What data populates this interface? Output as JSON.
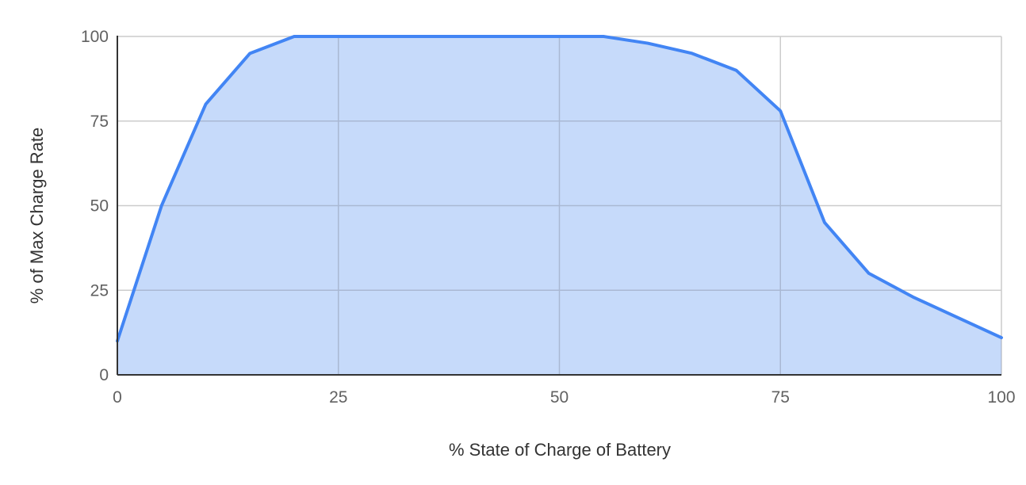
{
  "chart_data": {
    "type": "area",
    "title": "",
    "xlabel": "% State of Charge of Battery",
    "ylabel": "% of Max Charge Rate",
    "xlim": [
      0,
      100
    ],
    "ylim": [
      0,
      100
    ],
    "x_ticks": [
      "0",
      "25",
      "50",
      "75",
      "100"
    ],
    "y_ticks": [
      "0",
      "25",
      "50",
      "75",
      "100"
    ],
    "grid": true,
    "legend": "none",
    "x": [
      0,
      5,
      10,
      15,
      20,
      25,
      30,
      35,
      40,
      45,
      50,
      55,
      60,
      65,
      70,
      75,
      80,
      85,
      90,
      95,
      100
    ],
    "series": [
      {
        "values": [
          10,
          50,
          80,
          95,
          100,
          100,
          100,
          100,
          100,
          100,
          100,
          100,
          98,
          95,
          90,
          78,
          45,
          30,
          23,
          17,
          11
        ],
        "line_color": "#4285f4",
        "fill_color": "#c6dafa"
      }
    ],
    "colors": {
      "grid": "#cccccc",
      "grid_over_fill": "#a9b8d3",
      "axis": "#333333"
    }
  }
}
